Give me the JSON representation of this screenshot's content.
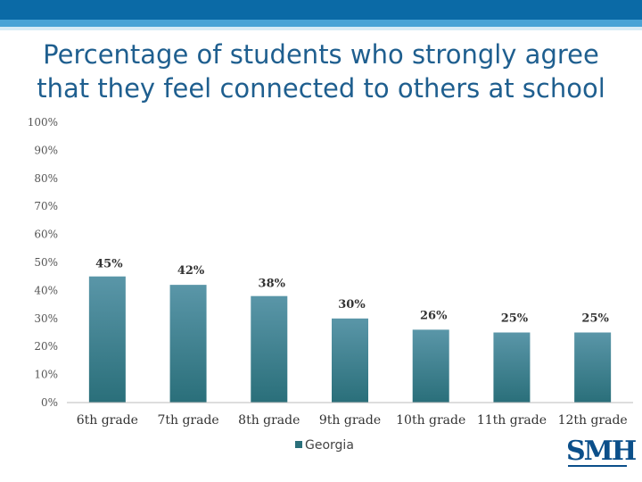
{
  "chart_data": {
    "type": "bar",
    "title": "Percentage of students who strongly agree that they feel connected to others at school",
    "categories": [
      "6th grade",
      "7th grade",
      "8th grade",
      "9th grade",
      "10th grade",
      "11th grade",
      "12th grade"
    ],
    "series": [
      {
        "name": "Georgia",
        "values": [
          45,
          42,
          38,
          30,
          26,
          25,
          25
        ],
        "labels": [
          "45%",
          "42%",
          "38%",
          "30%",
          "26%",
          "25%",
          "25%"
        ]
      }
    ],
    "ylim": [
      0,
      100
    ],
    "yticks": [
      "0%",
      "10%",
      "20%",
      "30%",
      "40%",
      "50%",
      "60%",
      "70%",
      "80%",
      "90%",
      "100%"
    ],
    "grid": false,
    "legend_position": "bottom",
    "colors": {
      "bar_top": "#5a96a8",
      "bar_bottom": "#2a6f7a"
    }
  },
  "logo": {
    "text": "SMH"
  }
}
